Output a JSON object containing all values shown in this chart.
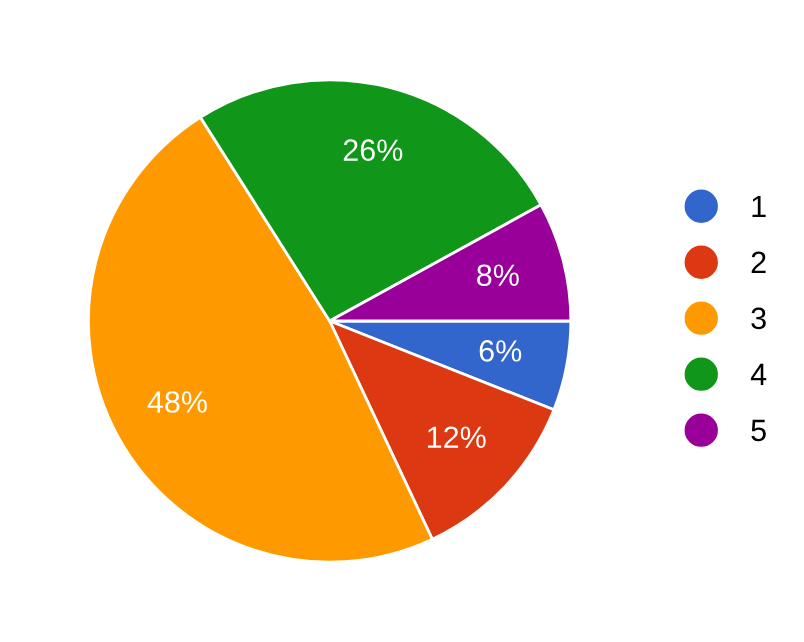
{
  "chart_data": {
    "type": "pie",
    "categories": [
      "1",
      "2",
      "3",
      "4",
      "5"
    ],
    "values": [
      6,
      12,
      48,
      26,
      8
    ],
    "value_labels": [
      "6%",
      "12%",
      "48%",
      "26%",
      "8%"
    ],
    "colors": [
      "#3366cc",
      "#dc3912",
      "#ff9900",
      "#109618",
      "#990099"
    ],
    "legend": "right"
  }
}
